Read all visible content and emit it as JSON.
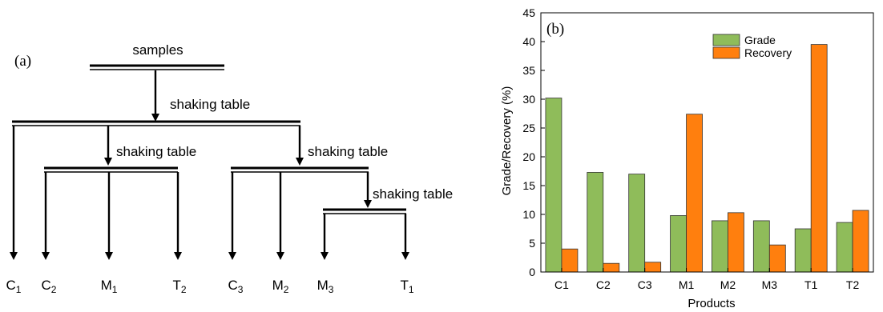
{
  "diagram": {
    "panel_label": "(a)",
    "root_label": "samples",
    "step_label": "shaking table",
    "products": [
      {
        "name": "C",
        "sub": "1"
      },
      {
        "name": "C",
        "sub": "2"
      },
      {
        "name": "M",
        "sub": "1"
      },
      {
        "name": "T",
        "sub": "2"
      },
      {
        "name": "C",
        "sub": "3"
      },
      {
        "name": "M",
        "sub": "2"
      },
      {
        "name": "M",
        "sub": "3"
      },
      {
        "name": "T",
        "sub": "1"
      }
    ]
  },
  "chart_data": {
    "type": "bar",
    "panel_label": "(b)",
    "categories": [
      "C1",
      "C2",
      "C3",
      "M1",
      "M2",
      "M3",
      "T1",
      "T2"
    ],
    "series": [
      {
        "name": "Grade",
        "color": "#8fbc5a",
        "values": [
          30.2,
          17.3,
          17.0,
          9.8,
          8.9,
          8.9,
          7.5,
          8.6
        ]
      },
      {
        "name": "Recovery",
        "color": "#ff7f0e",
        "values": [
          4.0,
          1.5,
          1.7,
          27.4,
          10.3,
          4.7,
          39.5,
          10.7
        ]
      }
    ],
    "xlabel": "Products",
    "ylabel": "Grade/Recovery (%)",
    "ylim": [
      0,
      45
    ],
    "yticks": [
      0,
      5,
      10,
      15,
      20,
      25,
      30,
      35,
      40,
      45
    ],
    "legend_position": "top-center",
    "grid": false
  }
}
